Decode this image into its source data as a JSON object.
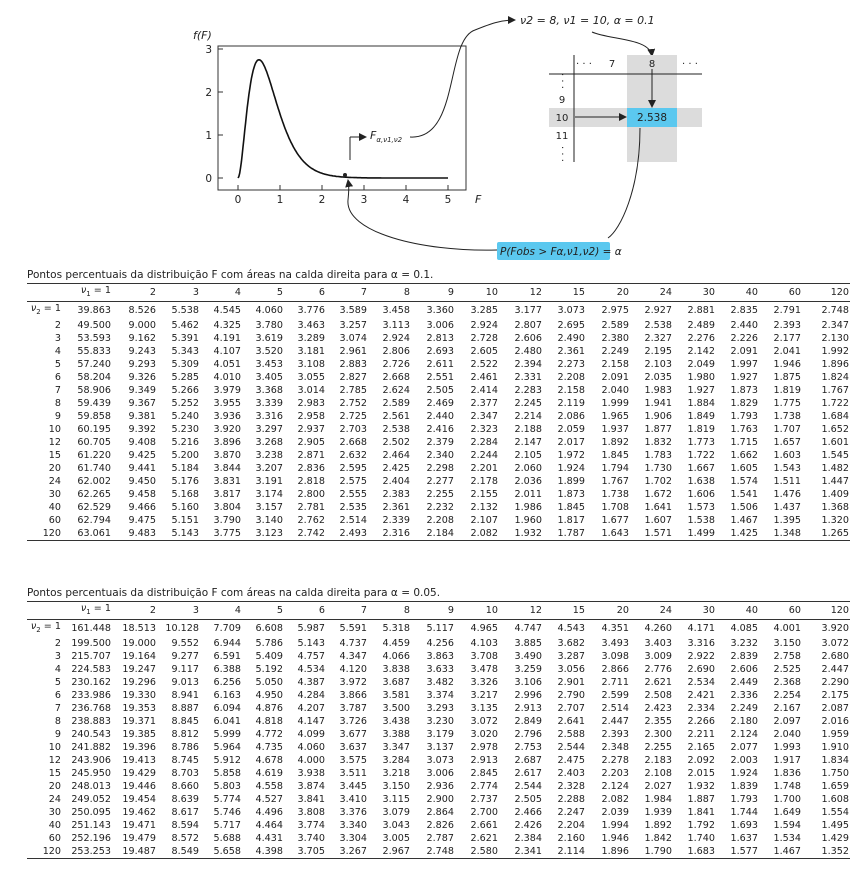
{
  "figure": {
    "fF_label": "f(F)",
    "F_label": "F",
    "y_ticks": [
      "0",
      "1",
      "2",
      "3"
    ],
    "x_ticks": [
      "0",
      "1",
      "2",
      "3",
      "4",
      "5"
    ],
    "F_alpha_label": "F",
    "F_alpha_sub": "α,ν1,ν2",
    "params_label": "ν2 = 8, ν1 = 10, α = 0.1",
    "mini_cols": [
      "· · ·",
      "7",
      "8",
      "· · ·"
    ],
    "mini_rows": [
      "· · ·",
      "9",
      "10",
      "11",
      "· · ·"
    ],
    "mini_value": "2.538",
    "prob_label": "P(Fobs > Fα,ν1,ν2) = α",
    "colors": {
      "shade": "#5bc8ef",
      "box": "#dcdcdc",
      "prob_bg": "#5bc8ef"
    }
  },
  "table1": {
    "caption": "Pontos percentuais da distribuição F com áreas na calda direita para α = 0.1.",
    "nu1_label": "ν1 = 1",
    "nu2_label": "ν2 = 1",
    "cols": [
      "2",
      "3",
      "4",
      "5",
      "6",
      "7",
      "8",
      "9",
      "10",
      "12",
      "15",
      "20",
      "24",
      "30",
      "40",
      "60",
      "120"
    ],
    "rows": [
      {
        "nu2": "1",
        "v": [
          "39.863",
          "8.526",
          "5.538",
          "4.545",
          "4.060",
          "3.776",
          "3.589",
          "3.458",
          "3.360",
          "3.285",
          "3.177",
          "3.073",
          "2.975",
          "2.927",
          "2.881",
          "2.835",
          "2.791",
          "2.748"
        ]
      },
      {
        "nu2": "2",
        "v": [
          "49.500",
          "9.000",
          "5.462",
          "4.325",
          "3.780",
          "3.463",
          "3.257",
          "3.113",
          "3.006",
          "2.924",
          "2.807",
          "2.695",
          "2.589",
          "2.538",
          "2.489",
          "2.440",
          "2.393",
          "2.347"
        ]
      },
      {
        "nu2": "3",
        "v": [
          "53.593",
          "9.162",
          "5.391",
          "4.191",
          "3.619",
          "3.289",
          "3.074",
          "2.924",
          "2.813",
          "2.728",
          "2.606",
          "2.490",
          "2.380",
          "2.327",
          "2.276",
          "2.226",
          "2.177",
          "2.130"
        ]
      },
      {
        "nu2": "4",
        "v": [
          "55.833",
          "9.243",
          "5.343",
          "4.107",
          "3.520",
          "3.181",
          "2.961",
          "2.806",
          "2.693",
          "2.605",
          "2.480",
          "2.361",
          "2.249",
          "2.195",
          "2.142",
          "2.091",
          "2.041",
          "1.992"
        ]
      },
      {
        "nu2": "5",
        "v": [
          "57.240",
          "9.293",
          "5.309",
          "4.051",
          "3.453",
          "3.108",
          "2.883",
          "2.726",
          "2.611",
          "2.522",
          "2.394",
          "2.273",
          "2.158",
          "2.103",
          "2.049",
          "1.997",
          "1.946",
          "1.896"
        ]
      },
      {
        "nu2": "6",
        "v": [
          "58.204",
          "9.326",
          "5.285",
          "4.010",
          "3.405",
          "3.055",
          "2.827",
          "2.668",
          "2.551",
          "2.461",
          "2.331",
          "2.208",
          "2.091",
          "2.035",
          "1.980",
          "1.927",
          "1.875",
          "1.824"
        ]
      },
      {
        "nu2": "7",
        "v": [
          "58.906",
          "9.349",
          "5.266",
          "3.979",
          "3.368",
          "3.014",
          "2.785",
          "2.624",
          "2.505",
          "2.414",
          "2.283",
          "2.158",
          "2.040",
          "1.983",
          "1.927",
          "1.873",
          "1.819",
          "1.767"
        ]
      },
      {
        "nu2": "8",
        "v": [
          "59.439",
          "9.367",
          "5.252",
          "3.955",
          "3.339",
          "2.983",
          "2.752",
          "2.589",
          "2.469",
          "2.377",
          "2.245",
          "2.119",
          "1.999",
          "1.941",
          "1.884",
          "1.829",
          "1.775",
          "1.722"
        ]
      },
      {
        "nu2": "9",
        "v": [
          "59.858",
          "9.381",
          "5.240",
          "3.936",
          "3.316",
          "2.958",
          "2.725",
          "2.561",
          "2.440",
          "2.347",
          "2.214",
          "2.086",
          "1.965",
          "1.906",
          "1.849",
          "1.793",
          "1.738",
          "1.684"
        ]
      },
      {
        "nu2": "10",
        "v": [
          "60.195",
          "9.392",
          "5.230",
          "3.920",
          "3.297",
          "2.937",
          "2.703",
          "2.538",
          "2.416",
          "2.323",
          "2.188",
          "2.059",
          "1.937",
          "1.877",
          "1.819",
          "1.763",
          "1.707",
          "1.652"
        ]
      },
      {
        "nu2": "12",
        "v": [
          "60.705",
          "9.408",
          "5.216",
          "3.896",
          "3.268",
          "2.905",
          "2.668",
          "2.502",
          "2.379",
          "2.284",
          "2.147",
          "2.017",
          "1.892",
          "1.832",
          "1.773",
          "1.715",
          "1.657",
          "1.601"
        ]
      },
      {
        "nu2": "15",
        "v": [
          "61.220",
          "9.425",
          "5.200",
          "3.870",
          "3.238",
          "2.871",
          "2.632",
          "2.464",
          "2.340",
          "2.244",
          "2.105",
          "1.972",
          "1.845",
          "1.783",
          "1.722",
          "1.662",
          "1.603",
          "1.545"
        ]
      },
      {
        "nu2": "20",
        "v": [
          "61.740",
          "9.441",
          "5.184",
          "3.844",
          "3.207",
          "2.836",
          "2.595",
          "2.425",
          "2.298",
          "2.201",
          "2.060",
          "1.924",
          "1.794",
          "1.730",
          "1.667",
          "1.605",
          "1.543",
          "1.482"
        ]
      },
      {
        "nu2": "24",
        "v": [
          "62.002",
          "9.450",
          "5.176",
          "3.831",
          "3.191",
          "2.818",
          "2.575",
          "2.404",
          "2.277",
          "2.178",
          "2.036",
          "1.899",
          "1.767",
          "1.702",
          "1.638",
          "1.574",
          "1.511",
          "1.447"
        ]
      },
      {
        "nu2": "30",
        "v": [
          "62.265",
          "9.458",
          "5.168",
          "3.817",
          "3.174",
          "2.800",
          "2.555",
          "2.383",
          "2.255",
          "2.155",
          "2.011",
          "1.873",
          "1.738",
          "1.672",
          "1.606",
          "1.541",
          "1.476",
          "1.409"
        ]
      },
      {
        "nu2": "40",
        "v": [
          "62.529",
          "9.466",
          "5.160",
          "3.804",
          "3.157",
          "2.781",
          "2.535",
          "2.361",
          "2.232",
          "2.132",
          "1.986",
          "1.845",
          "1.708",
          "1.641",
          "1.573",
          "1.506",
          "1.437",
          "1.368"
        ]
      },
      {
        "nu2": "60",
        "v": [
          "62.794",
          "9.475",
          "5.151",
          "3.790",
          "3.140",
          "2.762",
          "2.514",
          "2.339",
          "2.208",
          "2.107",
          "1.960",
          "1.817",
          "1.677",
          "1.607",
          "1.538",
          "1.467",
          "1.395",
          "1.320"
        ]
      },
      {
        "nu2": "120",
        "v": [
          "63.061",
          "9.483",
          "5.143",
          "3.775",
          "3.123",
          "2.742",
          "2.493",
          "2.316",
          "2.184",
          "2.082",
          "1.932",
          "1.787",
          "1.643",
          "1.571",
          "1.499",
          "1.425",
          "1.348",
          "1.265"
        ]
      }
    ]
  },
  "table2": {
    "caption": "Pontos percentuais da distribuição F com áreas na calda direita para α = 0.05.",
    "nu1_label": "ν1 = 1",
    "nu2_label": "ν2 = 1",
    "cols": [
      "2",
      "3",
      "4",
      "5",
      "6",
      "7",
      "8",
      "9",
      "10",
      "12",
      "15",
      "20",
      "24",
      "30",
      "40",
      "60",
      "120"
    ],
    "rows": [
      {
        "nu2": "1",
        "v": [
          "161.448",
          "18.513",
          "10.128",
          "7.709",
          "6.608",
          "5.987",
          "5.591",
          "5.318",
          "5.117",
          "4.965",
          "4.747",
          "4.543",
          "4.351",
          "4.260",
          "4.171",
          "4.085",
          "4.001",
          "3.920"
        ]
      },
      {
        "nu2": "2",
        "v": [
          "199.500",
          "19.000",
          "9.552",
          "6.944",
          "5.786",
          "5.143",
          "4.737",
          "4.459",
          "4.256",
          "4.103",
          "3.885",
          "3.682",
          "3.493",
          "3.403",
          "3.316",
          "3.232",
          "3.150",
          "3.072"
        ]
      },
      {
        "nu2": "3",
        "v": [
          "215.707",
          "19.164",
          "9.277",
          "6.591",
          "5.409",
          "4.757",
          "4.347",
          "4.066",
          "3.863",
          "3.708",
          "3.490",
          "3.287",
          "3.098",
          "3.009",
          "2.922",
          "2.839",
          "2.758",
          "2.680"
        ]
      },
      {
        "nu2": "4",
        "v": [
          "224.583",
          "19.247",
          "9.117",
          "6.388",
          "5.192",
          "4.534",
          "4.120",
          "3.838",
          "3.633",
          "3.478",
          "3.259",
          "3.056",
          "2.866",
          "2.776",
          "2.690",
          "2.606",
          "2.525",
          "2.447"
        ]
      },
      {
        "nu2": "5",
        "v": [
          "230.162",
          "19.296",
          "9.013",
          "6.256",
          "5.050",
          "4.387",
          "3.972",
          "3.687",
          "3.482",
          "3.326",
          "3.106",
          "2.901",
          "2.711",
          "2.621",
          "2.534",
          "2.449",
          "2.368",
          "2.290"
        ]
      },
      {
        "nu2": "6",
        "v": [
          "233.986",
          "19.330",
          "8.941",
          "6.163",
          "4.950",
          "4.284",
          "3.866",
          "3.581",
          "3.374",
          "3.217",
          "2.996",
          "2.790",
          "2.599",
          "2.508",
          "2.421",
          "2.336",
          "2.254",
          "2.175"
        ]
      },
      {
        "nu2": "7",
        "v": [
          "236.768",
          "19.353",
          "8.887",
          "6.094",
          "4.876",
          "4.207",
          "3.787",
          "3.500",
          "3.293",
          "3.135",
          "2.913",
          "2.707",
          "2.514",
          "2.423",
          "2.334",
          "2.249",
          "2.167",
          "2.087"
        ]
      },
      {
        "nu2": "8",
        "v": [
          "238.883",
          "19.371",
          "8.845",
          "6.041",
          "4.818",
          "4.147",
          "3.726",
          "3.438",
          "3.230",
          "3.072",
          "2.849",
          "2.641",
          "2.447",
          "2.355",
          "2.266",
          "2.180",
          "2.097",
          "2.016"
        ]
      },
      {
        "nu2": "9",
        "v": [
          "240.543",
          "19.385",
          "8.812",
          "5.999",
          "4.772",
          "4.099",
          "3.677",
          "3.388",
          "3.179",
          "3.020",
          "2.796",
          "2.588",
          "2.393",
          "2.300",
          "2.211",
          "2.124",
          "2.040",
          "1.959"
        ]
      },
      {
        "nu2": "10",
        "v": [
          "241.882",
          "19.396",
          "8.786",
          "5.964",
          "4.735",
          "4.060",
          "3.637",
          "3.347",
          "3.137",
          "2.978",
          "2.753",
          "2.544",
          "2.348",
          "2.255",
          "2.165",
          "2.077",
          "1.993",
          "1.910"
        ]
      },
      {
        "nu2": "12",
        "v": [
          "243.906",
          "19.413",
          "8.745",
          "5.912",
          "4.678",
          "4.000",
          "3.575",
          "3.284",
          "3.073",
          "2.913",
          "2.687",
          "2.475",
          "2.278",
          "2.183",
          "2.092",
          "2.003",
          "1.917",
          "1.834"
        ]
      },
      {
        "nu2": "15",
        "v": [
          "245.950",
          "19.429",
          "8.703",
          "5.858",
          "4.619",
          "3.938",
          "3.511",
          "3.218",
          "3.006",
          "2.845",
          "2.617",
          "2.403",
          "2.203",
          "2.108",
          "2.015",
          "1.924",
          "1.836",
          "1.750"
        ]
      },
      {
        "nu2": "20",
        "v": [
          "248.013",
          "19.446",
          "8.660",
          "5.803",
          "4.558",
          "3.874",
          "3.445",
          "3.150",
          "2.936",
          "2.774",
          "2.544",
          "2.328",
          "2.124",
          "2.027",
          "1.932",
          "1.839",
          "1.748",
          "1.659"
        ]
      },
      {
        "nu2": "24",
        "v": [
          "249.052",
          "19.454",
          "8.639",
          "5.774",
          "4.527",
          "3.841",
          "3.410",
          "3.115",
          "2.900",
          "2.737",
          "2.505",
          "2.288",
          "2.082",
          "1.984",
          "1.887",
          "1.793",
          "1.700",
          "1.608"
        ]
      },
      {
        "nu2": "30",
        "v": [
          "250.095",
          "19.462",
          "8.617",
          "5.746",
          "4.496",
          "3.808",
          "3.376",
          "3.079",
          "2.864",
          "2.700",
          "2.466",
          "2.247",
          "2.039",
          "1.939",
          "1.841",
          "1.744",
          "1.649",
          "1.554"
        ]
      },
      {
        "nu2": "40",
        "v": [
          "251.143",
          "19.471",
          "8.594",
          "5.717",
          "4.464",
          "3.774",
          "3.340",
          "3.043",
          "2.826",
          "2.661",
          "2.426",
          "2.204",
          "1.994",
          "1.892",
          "1.792",
          "1.693",
          "1.594",
          "1.495"
        ]
      },
      {
        "nu2": "60",
        "v": [
          "252.196",
          "19.479",
          "8.572",
          "5.688",
          "4.431",
          "3.740",
          "3.304",
          "3.005",
          "2.787",
          "2.621",
          "2.384",
          "2.160",
          "1.946",
          "1.842",
          "1.740",
          "1.637",
          "1.534",
          "1.429"
        ]
      },
      {
        "nu2": "120",
        "v": [
          "253.253",
          "19.487",
          "8.549",
          "5.658",
          "4.398",
          "3.705",
          "3.267",
          "2.967",
          "2.748",
          "2.580",
          "2.341",
          "2.114",
          "1.896",
          "1.790",
          "1.683",
          "1.577",
          "1.467",
          "1.352"
        ]
      }
    ]
  }
}
